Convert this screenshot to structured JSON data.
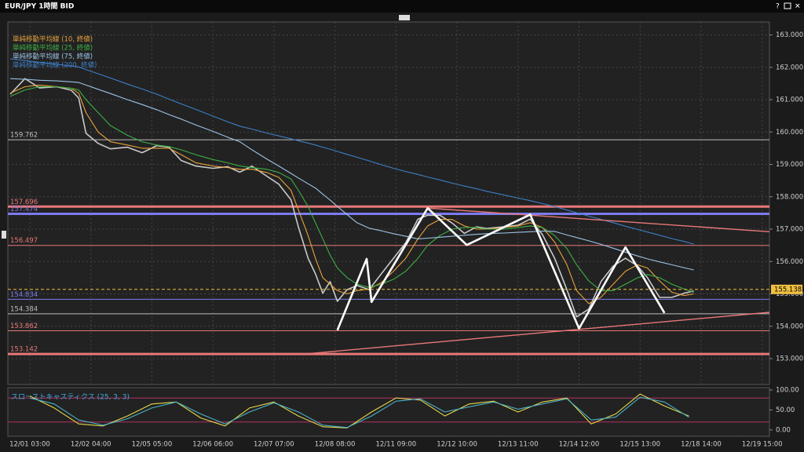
{
  "window_title": "EUR/JPY 1時間 BID",
  "chart_data": [
    {
      "type": "line",
      "x": [
        -8,
        -2,
        4,
        11,
        17,
        20,
        23,
        28,
        33,
        40,
        46,
        52,
        57,
        62,
        68,
        75,
        81,
        86,
        91,
        97,
        102,
        107,
        110,
        114,
        117,
        120,
        123,
        126,
        130,
        134,
        139,
        144,
        149,
        154,
        159,
        163,
        168,
        173,
        178,
        183,
        187,
        194,
        200,
        205,
        210,
        215,
        220,
        224,
        229,
        234,
        239,
        244,
        249,
        253,
        258,
        263,
        268,
        272
      ],
      "xlim": [
        -9,
        303
      ],
      "xticks": [
        {
          "value": 0,
          "label": "12/01 03:00"
        },
        {
          "value": 25,
          "label": "12/02 04:00"
        },
        {
          "value": 50,
          "label": "12/05 05:00"
        },
        {
          "value": 75,
          "label": "12/06 06:00"
        },
        {
          "value": 100,
          "label": "12/07 07:00"
        },
        {
          "value": 125,
          "label": "12/08 08:00"
        },
        {
          "value": 150,
          "label": "12/11 09:00"
        },
        {
          "value": 175,
          "label": "12/12 10:00"
        },
        {
          "value": 200,
          "label": "12/13 11:00"
        },
        {
          "value": 225,
          "label": "12/14 12:00"
        },
        {
          "value": 250,
          "label": "12/15 13:00"
        },
        {
          "value": 275,
          "label": "12/18 14:00"
        },
        {
          "value": 300,
          "label": "12/19 15:00"
        }
      ],
      "ylim": [
        152.2,
        163.4
      ],
      "yticks": [
        {
          "value": 153,
          "label": "153.000"
        },
        {
          "value": 154,
          "label": "154.000"
        },
        {
          "value": 155,
          "label": "155.000"
        },
        {
          "value": 156,
          "label": "156.000"
        },
        {
          "value": 157,
          "label": "157.000"
        },
        {
          "value": 158,
          "label": "158.000"
        },
        {
          "value": 159,
          "label": "159.000"
        },
        {
          "value": 160,
          "label": "160.000"
        },
        {
          "value": 161,
          "label": "161.000"
        },
        {
          "value": 162,
          "label": "162.000"
        },
        {
          "value": 163,
          "label": "163.000"
        }
      ],
      "grid": true,
      "series": [
        {
          "color": "#c9c9c9",
          "values": [
            161.17,
            161.65,
            161.36,
            161.4,
            161.29,
            161.05,
            159.96,
            159.65,
            159.48,
            159.53,
            159.36,
            159.58,
            159.53,
            159.12,
            158.95,
            158.88,
            158.93,
            158.76,
            158.95,
            158.64,
            158.39,
            157.91,
            157.07,
            156.1,
            155.62,
            155.02,
            155.38,
            154.77,
            155.13,
            155.26,
            155.13,
            155.62,
            156.1,
            156.58,
            157.31,
            157.43,
            157.43,
            157.19,
            156.87,
            157.07,
            157.02,
            157.07,
            157.12,
            157.31,
            156.83,
            156.1,
            155.13,
            154.29,
            154.53,
            155.38,
            155.86,
            156.1,
            155.86,
            155.5,
            154.89,
            154.89,
            155.02,
            155.09
          ]
        },
        {
          "name": "単純移動平均線 (10, 終値)",
          "color": "#e8a33d",
          "values": [
            161.2,
            161.4,
            161.45,
            161.4,
            161.35,
            161.2,
            160.6,
            160.0,
            159.7,
            159.6,
            159.5,
            159.5,
            159.5,
            159.3,
            159.05,
            158.95,
            158.9,
            158.85,
            158.85,
            158.75,
            158.6,
            158.2,
            157.6,
            156.8,
            156.1,
            155.5,
            155.3,
            155.1,
            155.0,
            155.1,
            155.15,
            155.35,
            155.7,
            156.1,
            156.7,
            157.1,
            157.3,
            157.3,
            157.1,
            157.0,
            157.0,
            157.05,
            157.1,
            157.2,
            157.05,
            156.6,
            155.9,
            155.1,
            154.7,
            154.9,
            155.3,
            155.7,
            155.9,
            155.8,
            155.4,
            155.05,
            154.95,
            155.0
          ]
        },
        {
          "name": "単純移動平均線 (25, 終値)",
          "color": "#3cb043",
          "values": [
            161.1,
            161.3,
            161.4,
            161.4,
            161.35,
            161.3,
            161.0,
            160.6,
            160.2,
            159.9,
            159.7,
            159.6,
            159.55,
            159.45,
            159.3,
            159.15,
            159.05,
            158.95,
            158.9,
            158.85,
            158.75,
            158.55,
            158.2,
            157.7,
            157.2,
            156.7,
            156.2,
            155.8,
            155.5,
            155.3,
            155.2,
            155.3,
            155.45,
            155.7,
            156.1,
            156.5,
            156.8,
            157.0,
            157.05,
            157.05,
            157.0,
            157.0,
            157.05,
            157.1,
            157.05,
            156.8,
            156.4,
            155.9,
            155.4,
            155.1,
            155.1,
            155.3,
            155.5,
            155.6,
            155.5,
            155.3,
            155.15,
            155.05
          ]
        },
        {
          "name": "単純移動平均線 (75, 終値)",
          "color": "#9cc3e6",
          "values": [
            161.65,
            161.63,
            161.6,
            161.58,
            161.55,
            161.53,
            161.45,
            161.32,
            161.19,
            161.0,
            160.85,
            160.69,
            160.54,
            160.4,
            160.22,
            160.02,
            159.84,
            159.7,
            159.45,
            159.17,
            158.95,
            158.72,
            158.58,
            158.4,
            158.27,
            158.08,
            157.9,
            157.7,
            157.45,
            157.2,
            157.03,
            156.95,
            156.86,
            156.78,
            156.7,
            156.72,
            156.75,
            156.78,
            156.81,
            156.84,
            156.86,
            156.88,
            156.9,
            156.92,
            156.94,
            156.93,
            156.82,
            156.74,
            156.64,
            156.53,
            156.41,
            156.29,
            156.17,
            156.08,
            155.99,
            155.9,
            155.81,
            155.74
          ]
        },
        {
          "name": "単純移動平均線 (200, 終値)",
          "color": "#3d7fc7",
          "values": [
            162.26,
            162.21,
            162.15,
            162.09,
            162.04,
            162.01,
            161.93,
            161.8,
            161.67,
            161.48,
            161.33,
            161.17,
            161.02,
            160.87,
            160.7,
            160.49,
            160.32,
            160.18,
            160.09,
            159.97,
            159.88,
            159.79,
            159.73,
            159.66,
            159.6,
            159.53,
            159.47,
            159.4,
            159.31,
            159.22,
            159.11,
            158.99,
            158.88,
            158.78,
            158.69,
            158.61,
            158.52,
            158.42,
            158.33,
            158.25,
            158.17,
            158.06,
            157.96,
            157.88,
            157.79,
            157.7,
            157.59,
            157.51,
            157.4,
            157.3,
            157.2,
            157.09,
            156.99,
            156.91,
            156.81,
            156.71,
            156.62,
            156.54
          ]
        }
      ],
      "levels_labelled": true,
      "levels": [
        {
          "value": 159.762,
          "color": "#bdbdbd",
          "style": "thin"
        },
        {
          "value": 157.696,
          "color": "#e87878",
          "style": "thick"
        },
        {
          "value": 157.474,
          "color": "#7b7bf0",
          "style": "thick"
        },
        {
          "value": 156.497,
          "color": "#e87878",
          "style": "thin"
        },
        {
          "value": 154.834,
          "color": "#7b7bf0",
          "style": "thin"
        },
        {
          "value": 154.384,
          "color": "#bdbdbd",
          "style": "thin"
        },
        {
          "value": 153.862,
          "color": "#e87878",
          "style": "thin"
        },
        {
          "value": 153.142,
          "color": "#e87878",
          "style": "thick"
        }
      ],
      "current_price": {
        "value": 155.138,
        "color": "#f0c040"
      },
      "zigzag": {
        "x": [
          126,
          138,
          140,
          163,
          179,
          205,
          225,
          244,
          260
        ],
        "y": [
          153.88,
          156.08,
          154.75,
          157.65,
          156.51,
          157.45,
          153.93,
          156.44,
          154.41
        ],
        "color": "#ffffff"
      },
      "trendlines": [
        {
          "x": [
            163,
            303
          ],
          "y": [
            157.65,
            156.92
          ],
          "color": "#e87878"
        },
        {
          "x": [
            115,
            303
          ],
          "y": [
            153.16,
            154.43
          ],
          "color": "#e87878"
        }
      ]
    },
    {
      "type": "line",
      "title": "スローストキャスティクス (25, 3, 3)",
      "x": [
        0,
        10,
        20,
        30,
        40,
        50,
        60,
        70,
        80,
        90,
        100,
        110,
        120,
        130,
        140,
        150,
        160,
        170,
        180,
        190,
        200,
        210,
        220,
        230,
        240,
        250,
        260,
        270
      ],
      "xlim": [
        -9,
        303
      ],
      "ylim": [
        -16,
        106
      ],
      "yticks": [
        {
          "value": 100,
          "label": "100.00"
        },
        {
          "value": 50,
          "label": "50.00"
        },
        {
          "value": 0,
          "label": "0.00"
        }
      ],
      "levels": [
        {
          "value": 80,
          "color": "#b03060",
          "style": "thin"
        },
        {
          "value": 20,
          "color": "#b03060",
          "style": "thin"
        }
      ],
      "series": [
        {
          "color": "#e6d84a",
          "values": [
            85,
            55,
            15,
            10,
            35,
            65,
            70,
            30,
            10,
            55,
            70,
            35,
            8,
            5,
            45,
            80,
            75,
            35,
            65,
            72,
            45,
            70,
            80,
            15,
            40,
            90,
            60,
            35
          ]
        },
        {
          "color": "#4ab0c8",
          "values": [
            80,
            65,
            25,
            12,
            28,
            55,
            70,
            40,
            15,
            45,
            68,
            45,
            12,
            6,
            35,
            72,
            78,
            45,
            58,
            70,
            52,
            65,
            78,
            25,
            32,
            82,
            70,
            32
          ]
        }
      ]
    }
  ]
}
